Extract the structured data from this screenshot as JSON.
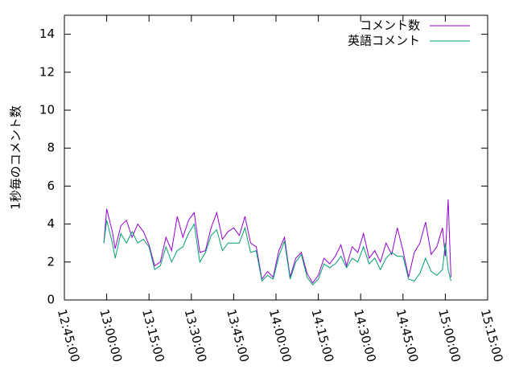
{
  "chart_data": {
    "type": "line",
    "y_label": "1秒毎のコメント数",
    "x": [
      "12:59:00",
      "13:00:00",
      "13:02:00",
      "13:03:00",
      "13:05:00",
      "13:07:00",
      "13:09:00",
      "13:11:00",
      "13:13:00",
      "13:15:00",
      "13:17:00",
      "13:19:00",
      "13:21:00",
      "13:23:00",
      "13:25:00",
      "13:27:00",
      "13:29:00",
      "13:31:00",
      "13:33:00",
      "13:35:00",
      "13:37:00",
      "13:39:00",
      "13:41:00",
      "13:43:00",
      "13:45:00",
      "13:47:00",
      "13:49:00",
      "13:51:00",
      "13:53:00",
      "13:55:00",
      "13:57:00",
      "13:59:00",
      "14:01:00",
      "14:03:00",
      "14:05:00",
      "14:07:00",
      "14:09:00",
      "14:11:00",
      "14:13:00",
      "14:15:00",
      "14:17:00",
      "14:19:00",
      "14:21:00",
      "14:23:00",
      "14:25:00",
      "14:27:00",
      "14:29:00",
      "14:31:00",
      "14:33:00",
      "14:35:00",
      "14:37:00",
      "14:39:00",
      "14:41:00",
      "14:43:00",
      "14:45:00",
      "14:47:00",
      "14:49:00",
      "14:51:00",
      "14:53:00",
      "14:55:00",
      "14:57:00",
      "14:59:00",
      "15:00:00",
      "15:01:00",
      "15:02:00"
    ],
    "series": [
      {
        "name": "コメント数",
        "color": "#9400d3",
        "values": [
          3.0,
          4.8,
          3.6,
          2.7,
          3.9,
          4.2,
          3.3,
          4.0,
          3.6,
          2.9,
          1.8,
          2.0,
          3.3,
          2.6,
          4.4,
          3.3,
          4.2,
          4.6,
          2.5,
          2.6,
          3.8,
          4.6,
          3.2,
          3.6,
          3.8,
          3.4,
          4.4,
          3.0,
          2.8,
          1.1,
          1.5,
          1.2,
          2.6,
          3.3,
          1.2,
          2.2,
          2.5,
          1.4,
          0.9,
          1.3,
          2.2,
          1.9,
          2.3,
          2.9,
          1.8,
          2.8,
          2.5,
          3.5,
          2.2,
          2.6,
          2.0,
          3.0,
          2.4,
          3.8,
          2.6,
          1.2,
          2.5,
          3.0,
          4.1,
          2.4,
          2.8,
          3.8,
          2.3,
          5.3,
          1.2
        ]
      },
      {
        "name": "英語コメント",
        "color": "#009e73",
        "values": [
          3.0,
          4.2,
          3.0,
          2.2,
          3.5,
          3.0,
          3.6,
          3.0,
          3.2,
          2.8,
          1.6,
          1.8,
          2.8,
          2.0,
          2.6,
          2.8,
          3.5,
          4.0,
          2.0,
          2.5,
          3.4,
          3.7,
          2.6,
          3.0,
          3.0,
          3.0,
          3.8,
          2.5,
          2.6,
          1.0,
          1.3,
          1.1,
          2.3,
          3.1,
          1.1,
          2.0,
          2.4,
          1.2,
          0.8,
          1.1,
          1.9,
          1.7,
          1.9,
          2.3,
          1.7,
          2.2,
          2.0,
          2.8,
          1.9,
          2.2,
          1.6,
          2.2,
          2.5,
          2.3,
          2.3,
          1.1,
          1.0,
          1.4,
          2.2,
          1.5,
          1.3,
          1.6,
          3.0,
          1.6,
          1.0
        ]
      }
    ],
    "xlim": [
      "12:45:00",
      "15:15:00"
    ],
    "xticks": [
      "12:45:00",
      "13:00:00",
      "13:15:00",
      "13:30:00",
      "13:45:00",
      "14:00:00",
      "14:15:00",
      "14:30:00",
      "14:45:00",
      "15:00:00",
      "15:15:00"
    ],
    "ylim": [
      0,
      15
    ],
    "yticks": [
      0,
      2,
      4,
      6,
      8,
      10,
      12,
      14
    ],
    "legend": "top-right",
    "grid": false
  }
}
